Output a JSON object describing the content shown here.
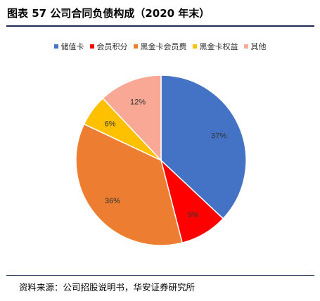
{
  "figure": {
    "title": "图表 57  公司合同负债构成（2020 年末）",
    "source": "资料来源：公司招股说明书，华安证券研究所"
  },
  "colors": {
    "储值卡": "#4472c4",
    "会员积分": "#ff0000",
    "黑金卡会员费": "#ed7d31",
    "黑金卡权益": "#ffc000",
    "其他": "#f8a895"
  },
  "chart_data": {
    "type": "pie",
    "title": "",
    "categories": [
      "储值卡",
      "会员积分",
      "黑金卡会员费",
      "黑金卡权益",
      "其他"
    ],
    "values": [
      37,
      9,
      36,
      6,
      12
    ],
    "labels": [
      "37%",
      "9%",
      "36%",
      "6%",
      "12%"
    ],
    "start_angle_deg": 0,
    "direction": "clockwise",
    "legend_position": "top"
  }
}
